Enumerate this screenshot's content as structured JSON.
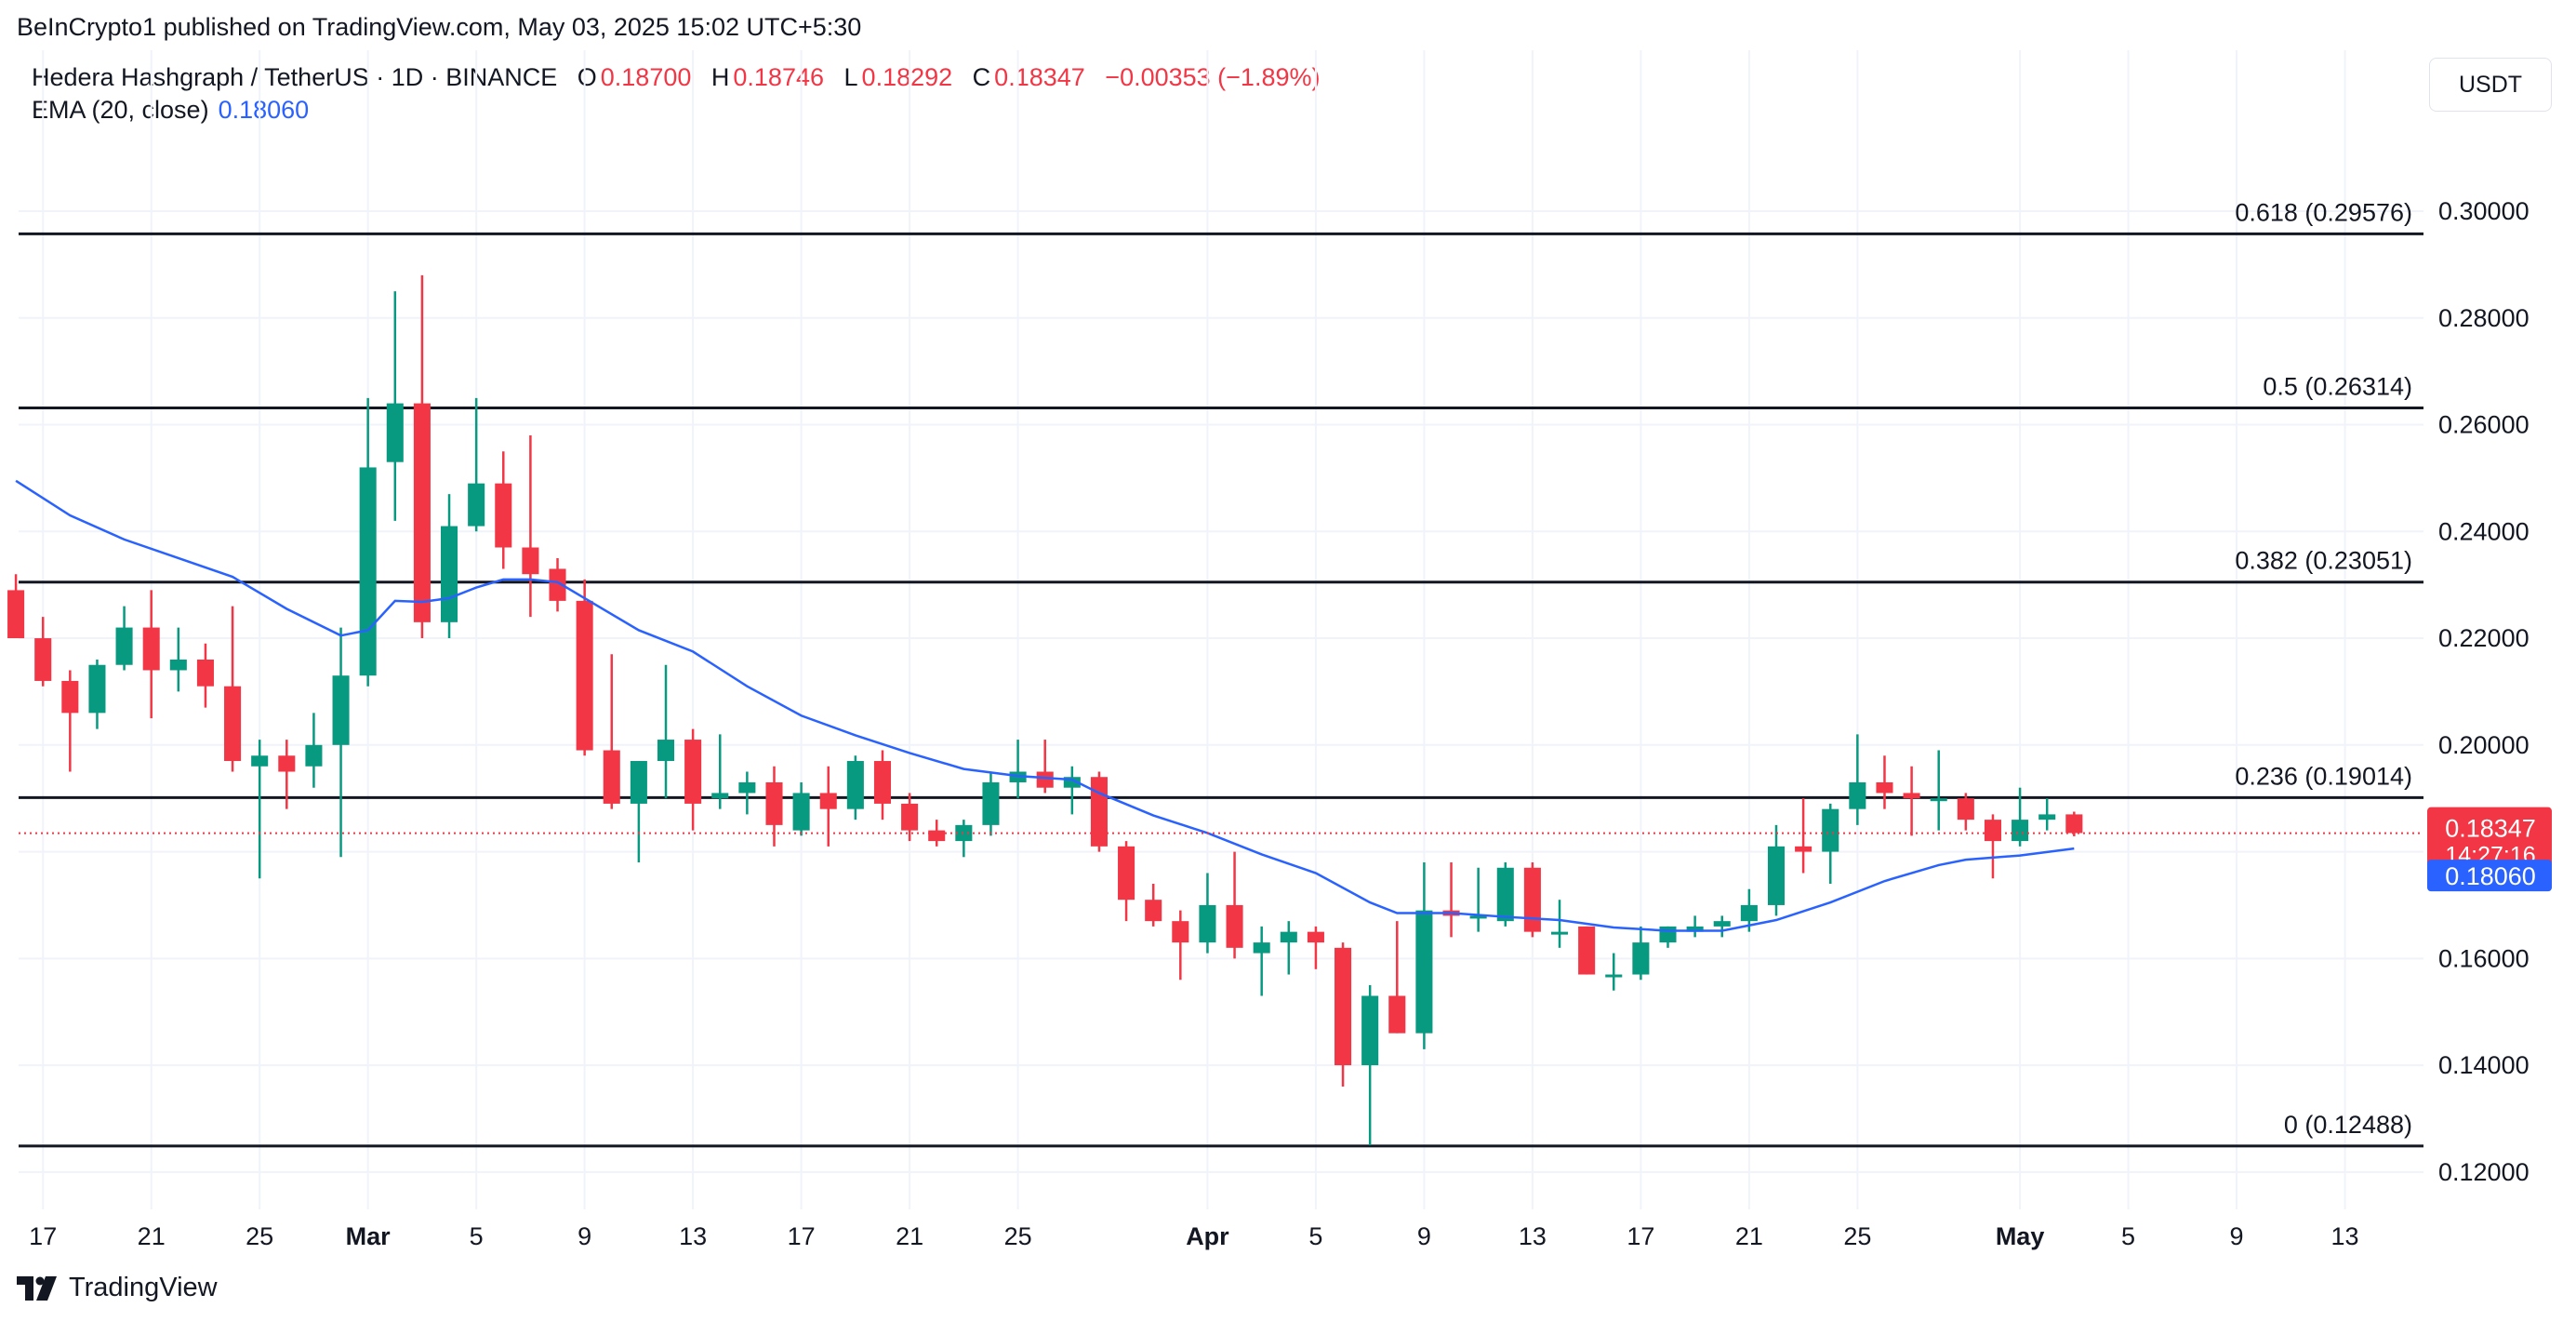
{
  "publish_line": "BeInCrypto1 published on TradingView.com, May 03, 2025 15:02 UTC+5:30",
  "legend": {
    "symbol": "Hedera Hashgraph / TetherUS · 1D · BINANCE",
    "open_label": "O",
    "open": "0.18700",
    "high_label": "H",
    "high": "0.18746",
    "low_label": "L",
    "low": "0.18292",
    "close_label": "C",
    "close": "0.18347",
    "change": "−0.00353 (−1.89%)"
  },
  "ema": {
    "label": "EMA (20, close)",
    "value": "0.18060"
  },
  "currency_button": "USDT",
  "brand": "TradingView",
  "colors": {
    "up": "#089981",
    "down": "#f23645",
    "ema": "#2962ff",
    "price_line": "#f23645"
  },
  "chart_data": {
    "type": "candlestick",
    "ylim": [
      0.113,
      0.319
    ],
    "y_ticks": [
      "0.12000",
      "0.14000",
      "0.16000",
      "0.18000",
      "0.20000",
      "0.22000",
      "0.24000",
      "0.26000",
      "0.28000",
      "0.30000"
    ],
    "y_tick_values": [
      0.12,
      0.14,
      0.16,
      0.18,
      0.2,
      0.22,
      0.24,
      0.26,
      0.28,
      0.3
    ],
    "x_ticks": [
      {
        "day": 0,
        "label": "17"
      },
      {
        "day": 4,
        "label": "21"
      },
      {
        "day": 8,
        "label": "25"
      },
      {
        "day": 12,
        "label": "Mar",
        "bold": true
      },
      {
        "day": 16,
        "label": "5"
      },
      {
        "day": 20,
        "label": "9"
      },
      {
        "day": 24,
        "label": "13"
      },
      {
        "day": 28,
        "label": "17"
      },
      {
        "day": 32,
        "label": "21"
      },
      {
        "day": 36,
        "label": "25"
      },
      {
        "day": 43,
        "label": "Apr",
        "bold": true
      },
      {
        "day": 47,
        "label": "5"
      },
      {
        "day": 51,
        "label": "9"
      },
      {
        "day": 55,
        "label": "13"
      },
      {
        "day": 59,
        "label": "17"
      },
      {
        "day": 63,
        "label": "21"
      },
      {
        "day": 67,
        "label": "25"
      },
      {
        "day": 73,
        "label": "May",
        "bold": true
      },
      {
        "day": 77,
        "label": "5"
      },
      {
        "day": 81,
        "label": "9"
      },
      {
        "day": 85,
        "label": "13"
      }
    ],
    "x_range_days": [
      -0.9,
      87.9
    ],
    "fib_levels": [
      {
        "ratio": "0.618",
        "price": 0.29576,
        "label": "0.618 (0.29576)"
      },
      {
        "ratio": "0.5",
        "price": 0.26314,
        "label": "0.5 (0.26314)"
      },
      {
        "ratio": "0.382",
        "price": 0.23051,
        "label": "0.382 (0.23051)"
      },
      {
        "ratio": "0.236",
        "price": 0.19014,
        "label": "0.236 (0.19014)"
      },
      {
        "ratio": "0",
        "price": 0.12488,
        "label": "0 (0.12488)"
      }
    ],
    "last_price": {
      "value": 0.18347,
      "label": "0.18347",
      "countdown": "14:27:16"
    },
    "ema_last": {
      "value": 0.1806,
      "label": "0.18060"
    },
    "candles": [
      {
        "d": -1,
        "o": 0.229,
        "h": 0.232,
        "l": 0.22,
        "c": 0.22
      },
      {
        "d": 0,
        "o": 0.22,
        "h": 0.224,
        "l": 0.211,
        "c": 0.212
      },
      {
        "d": 1,
        "o": 0.212,
        "h": 0.214,
        "l": 0.195,
        "c": 0.206
      },
      {
        "d": 2,
        "o": 0.206,
        "h": 0.216,
        "l": 0.203,
        "c": 0.215
      },
      {
        "d": 3,
        "o": 0.215,
        "h": 0.226,
        "l": 0.214,
        "c": 0.222
      },
      {
        "d": 4,
        "o": 0.222,
        "h": 0.229,
        "l": 0.205,
        "c": 0.214
      },
      {
        "d": 5,
        "o": 0.214,
        "h": 0.222,
        "l": 0.21,
        "c": 0.216
      },
      {
        "d": 6,
        "o": 0.216,
        "h": 0.219,
        "l": 0.207,
        "c": 0.211
      },
      {
        "d": 7,
        "o": 0.211,
        "h": 0.226,
        "l": 0.195,
        "c": 0.197
      },
      {
        "d": 8,
        "o": 0.196,
        "h": 0.201,
        "l": 0.175,
        "c": 0.198
      },
      {
        "d": 9,
        "o": 0.198,
        "h": 0.201,
        "l": 0.188,
        "c": 0.195
      },
      {
        "d": 10,
        "o": 0.196,
        "h": 0.206,
        "l": 0.192,
        "c": 0.2
      },
      {
        "d": 11,
        "o": 0.2,
        "h": 0.222,
        "l": 0.179,
        "c": 0.213
      },
      {
        "d": 12,
        "o": 0.213,
        "h": 0.265,
        "l": 0.211,
        "c": 0.252
      },
      {
        "d": 13,
        "o": 0.253,
        "h": 0.285,
        "l": 0.242,
        "c": 0.264
      },
      {
        "d": 14,
        "o": 0.264,
        "h": 0.288,
        "l": 0.22,
        "c": 0.223
      },
      {
        "d": 15,
        "o": 0.223,
        "h": 0.247,
        "l": 0.22,
        "c": 0.241
      },
      {
        "d": 16,
        "o": 0.241,
        "h": 0.265,
        "l": 0.24,
        "c": 0.249
      },
      {
        "d": 17,
        "o": 0.249,
        "h": 0.255,
        "l": 0.233,
        "c": 0.237
      },
      {
        "d": 18,
        "o": 0.237,
        "h": 0.258,
        "l": 0.224,
        "c": 0.232
      },
      {
        "d": 19,
        "o": 0.233,
        "h": 0.235,
        "l": 0.225,
        "c": 0.227
      },
      {
        "d": 20,
        "o": 0.227,
        "h": 0.231,
        "l": 0.198,
        "c": 0.199
      },
      {
        "d": 21,
        "o": 0.199,
        "h": 0.217,
        "l": 0.188,
        "c": 0.189
      },
      {
        "d": 22,
        "o": 0.189,
        "h": 0.197,
        "l": 0.178,
        "c": 0.197
      },
      {
        "d": 23,
        "o": 0.197,
        "h": 0.215,
        "l": 0.19,
        "c": 0.201
      },
      {
        "d": 24,
        "o": 0.201,
        "h": 0.203,
        "l": 0.184,
        "c": 0.189
      },
      {
        "d": 25,
        "o": 0.19,
        "h": 0.202,
        "l": 0.188,
        "c": 0.191
      },
      {
        "d": 26,
        "o": 0.191,
        "h": 0.195,
        "l": 0.187,
        "c": 0.193
      },
      {
        "d": 27,
        "o": 0.193,
        "h": 0.196,
        "l": 0.181,
        "c": 0.185
      },
      {
        "d": 28,
        "o": 0.184,
        "h": 0.193,
        "l": 0.183,
        "c": 0.191
      },
      {
        "d": 29,
        "o": 0.191,
        "h": 0.196,
        "l": 0.181,
        "c": 0.188
      },
      {
        "d": 30,
        "o": 0.188,
        "h": 0.198,
        "l": 0.186,
        "c": 0.197
      },
      {
        "d": 31,
        "o": 0.197,
        "h": 0.199,
        "l": 0.186,
        "c": 0.189
      },
      {
        "d": 32,
        "o": 0.189,
        "h": 0.191,
        "l": 0.182,
        "c": 0.184
      },
      {
        "d": 33,
        "o": 0.184,
        "h": 0.186,
        "l": 0.181,
        "c": 0.182
      },
      {
        "d": 34,
        "o": 0.182,
        "h": 0.186,
        "l": 0.179,
        "c": 0.185
      },
      {
        "d": 35,
        "o": 0.185,
        "h": 0.195,
        "l": 0.183,
        "c": 0.193
      },
      {
        "d": 36,
        "o": 0.193,
        "h": 0.201,
        "l": 0.19,
        "c": 0.195
      },
      {
        "d": 37,
        "o": 0.195,
        "h": 0.201,
        "l": 0.191,
        "c": 0.192
      },
      {
        "d": 38,
        "o": 0.192,
        "h": 0.196,
        "l": 0.187,
        "c": 0.194
      },
      {
        "d": 39,
        "o": 0.194,
        "h": 0.195,
        "l": 0.18,
        "c": 0.181
      },
      {
        "d": 40,
        "o": 0.181,
        "h": 0.182,
        "l": 0.167,
        "c": 0.171
      },
      {
        "d": 41,
        "o": 0.171,
        "h": 0.174,
        "l": 0.166,
        "c": 0.167
      },
      {
        "d": 42,
        "o": 0.167,
        "h": 0.169,
        "l": 0.156,
        "c": 0.163
      },
      {
        "d": 43,
        "o": 0.163,
        "h": 0.176,
        "l": 0.161,
        "c": 0.17
      },
      {
        "d": 44,
        "o": 0.17,
        "h": 0.18,
        "l": 0.16,
        "c": 0.162
      },
      {
        "d": 45,
        "o": 0.161,
        "h": 0.166,
        "l": 0.153,
        "c": 0.163
      },
      {
        "d": 46,
        "o": 0.163,
        "h": 0.167,
        "l": 0.157,
        "c": 0.165
      },
      {
        "d": 47,
        "o": 0.165,
        "h": 0.166,
        "l": 0.158,
        "c": 0.163
      },
      {
        "d": 48,
        "o": 0.162,
        "h": 0.163,
        "l": 0.136,
        "c": 0.14
      },
      {
        "d": 49,
        "o": 0.14,
        "h": 0.155,
        "l": 0.125,
        "c": 0.153
      },
      {
        "d": 50,
        "o": 0.153,
        "h": 0.167,
        "l": 0.146,
        "c": 0.146
      },
      {
        "d": 51,
        "o": 0.146,
        "h": 0.178,
        "l": 0.143,
        "c": 0.169
      },
      {
        "d": 52,
        "o": 0.169,
        "h": 0.178,
        "l": 0.164,
        "c": 0.168
      },
      {
        "d": 53,
        "o": 0.168,
        "h": 0.177,
        "l": 0.165,
        "c": 0.168
      },
      {
        "d": 54,
        "o": 0.167,
        "h": 0.178,
        "l": 0.166,
        "c": 0.177
      },
      {
        "d": 55,
        "o": 0.177,
        "h": 0.178,
        "l": 0.164,
        "c": 0.165
      },
      {
        "d": 56,
        "o": 0.165,
        "h": 0.171,
        "l": 0.162,
        "c": 0.165
      },
      {
        "d": 57,
        "o": 0.166,
        "h": 0.166,
        "l": 0.157,
        "c": 0.157
      },
      {
        "d": 58,
        "o": 0.157,
        "h": 0.161,
        "l": 0.154,
        "c": 0.157
      },
      {
        "d": 59,
        "o": 0.157,
        "h": 0.166,
        "l": 0.156,
        "c": 0.163
      },
      {
        "d": 60,
        "o": 0.163,
        "h": 0.166,
        "l": 0.162,
        "c": 0.166
      },
      {
        "d": 61,
        "o": 0.165,
        "h": 0.168,
        "l": 0.164,
        "c": 0.166
      },
      {
        "d": 62,
        "o": 0.166,
        "h": 0.168,
        "l": 0.164,
        "c": 0.167
      },
      {
        "d": 63,
        "o": 0.167,
        "h": 0.173,
        "l": 0.165,
        "c": 0.17
      },
      {
        "d": 64,
        "o": 0.17,
        "h": 0.185,
        "l": 0.168,
        "c": 0.181
      },
      {
        "d": 65,
        "o": 0.181,
        "h": 0.19,
        "l": 0.176,
        "c": 0.18
      },
      {
        "d": 66,
        "o": 0.18,
        "h": 0.189,
        "l": 0.174,
        "c": 0.188
      },
      {
        "d": 67,
        "o": 0.188,
        "h": 0.202,
        "l": 0.185,
        "c": 0.193
      },
      {
        "d": 68,
        "o": 0.193,
        "h": 0.198,
        "l": 0.188,
        "c": 0.191
      },
      {
        "d": 69,
        "o": 0.191,
        "h": 0.196,
        "l": 0.183,
        "c": 0.19
      },
      {
        "d": 70,
        "o": 0.19,
        "h": 0.199,
        "l": 0.184,
        "c": 0.19
      },
      {
        "d": 71,
        "o": 0.19,
        "h": 0.191,
        "l": 0.184,
        "c": 0.186
      },
      {
        "d": 72,
        "o": 0.186,
        "h": 0.187,
        "l": 0.175,
        "c": 0.182
      },
      {
        "d": 73,
        "o": 0.182,
        "h": 0.192,
        "l": 0.181,
        "c": 0.186
      },
      {
        "d": 74,
        "o": 0.186,
        "h": 0.19,
        "l": 0.184,
        "c": 0.187
      },
      {
        "d": 75,
        "o": 0.187,
        "h": 0.1875,
        "l": 0.1829,
        "c": 0.1835
      }
    ],
    "ema_points": [
      {
        "d": -1,
        "v": 0.2495
      },
      {
        "d": 1,
        "v": 0.243
      },
      {
        "d": 3,
        "v": 0.2385
      },
      {
        "d": 5,
        "v": 0.235
      },
      {
        "d": 7,
        "v": 0.2315
      },
      {
        "d": 9,
        "v": 0.2255
      },
      {
        "d": 11,
        "v": 0.2205
      },
      {
        "d": 12,
        "v": 0.2215
      },
      {
        "d": 13,
        "v": 0.227
      },
      {
        "d": 14,
        "v": 0.2268
      },
      {
        "d": 15,
        "v": 0.2275
      },
      {
        "d": 16,
        "v": 0.2295
      },
      {
        "d": 17,
        "v": 0.231
      },
      {
        "d": 18,
        "v": 0.231
      },
      {
        "d": 19,
        "v": 0.2305
      },
      {
        "d": 20,
        "v": 0.2275
      },
      {
        "d": 22,
        "v": 0.2215
      },
      {
        "d": 24,
        "v": 0.2175
      },
      {
        "d": 26,
        "v": 0.211
      },
      {
        "d": 28,
        "v": 0.2055
      },
      {
        "d": 30,
        "v": 0.2018
      },
      {
        "d": 32,
        "v": 0.1985
      },
      {
        "d": 34,
        "v": 0.1955
      },
      {
        "d": 36,
        "v": 0.1942
      },
      {
        "d": 38,
        "v": 0.1935
      },
      {
        "d": 39,
        "v": 0.191
      },
      {
        "d": 41,
        "v": 0.1868
      },
      {
        "d": 43,
        "v": 0.1835
      },
      {
        "d": 45,
        "v": 0.1795
      },
      {
        "d": 47,
        "v": 0.176
      },
      {
        "d": 49,
        "v": 0.1705
      },
      {
        "d": 50,
        "v": 0.1685
      },
      {
        "d": 52,
        "v": 0.1685
      },
      {
        "d": 54,
        "v": 0.1678
      },
      {
        "d": 56,
        "v": 0.1672
      },
      {
        "d": 58,
        "v": 0.1658
      },
      {
        "d": 60,
        "v": 0.1652
      },
      {
        "d": 62,
        "v": 0.1652
      },
      {
        "d": 63,
        "v": 0.1662
      },
      {
        "d": 64,
        "v": 0.1672
      },
      {
        "d": 66,
        "v": 0.1705
      },
      {
        "d": 68,
        "v": 0.1745
      },
      {
        "d": 70,
        "v": 0.1775
      },
      {
        "d": 71,
        "v": 0.1785
      },
      {
        "d": 73,
        "v": 0.1793
      },
      {
        "d": 75,
        "v": 0.1806
      }
    ]
  }
}
